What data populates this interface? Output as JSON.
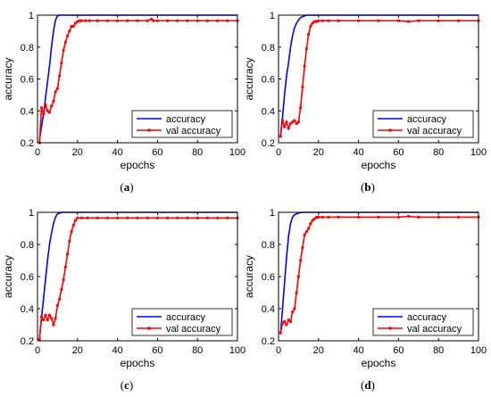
{
  "chart_data": [
    {
      "type": "line",
      "panel": "(a)",
      "caption_letter": "a",
      "xlabel": "epochs",
      "ylabel": "accuracy",
      "xlim": [
        0,
        100
      ],
      "ylim": [
        0.2,
        1
      ],
      "xticks": [
        "0",
        "20",
        "40",
        "60",
        "80",
        "100"
      ],
      "yticks": [
        "0.2",
        "0.4",
        "0.6",
        "0.8",
        "1"
      ],
      "legend": "bottom-right",
      "grid": false,
      "series": [
        {
          "name": "accuracy",
          "color": "#0000ff",
          "marker": "none",
          "x": [
            1,
            2,
            3,
            4,
            5,
            6,
            7,
            8,
            9,
            10,
            11,
            12,
            15,
            20,
            100
          ],
          "y": [
            0.22,
            0.3,
            0.38,
            0.48,
            0.58,
            0.68,
            0.8,
            0.9,
            0.97,
            0.995,
            1.0,
            1.0,
            1.0,
            1.0,
            1.0
          ]
        },
        {
          "name": "val accuracy",
          "color": "#ff0000",
          "marker": "dot",
          "x": [
            1,
            2,
            3,
            4,
            5,
            6,
            7,
            8,
            9,
            10,
            11,
            12,
            13,
            14,
            15,
            16,
            17,
            18,
            19,
            20,
            21,
            22,
            24,
            26,
            30,
            35,
            40,
            45,
            50,
            55,
            57,
            58,
            60,
            65,
            70,
            75,
            80,
            85,
            90,
            95,
            100
          ],
          "y": [
            0.2,
            0.42,
            0.38,
            0.44,
            0.4,
            0.39,
            0.43,
            0.46,
            0.52,
            0.54,
            0.62,
            0.7,
            0.78,
            0.83,
            0.87,
            0.9,
            0.93,
            0.93,
            0.95,
            0.96,
            0.965,
            0.965,
            0.965,
            0.965,
            0.965,
            0.965,
            0.965,
            0.965,
            0.965,
            0.965,
            0.975,
            0.965,
            0.965,
            0.965,
            0.965,
            0.965,
            0.965,
            0.965,
            0.965,
            0.965,
            0.965
          ]
        }
      ]
    },
    {
      "type": "line",
      "panel": "(b)",
      "caption_letter": "b",
      "xlabel": "epochs",
      "ylabel": "accuracy",
      "xlim": [
        0,
        100
      ],
      "ylim": [
        0.2,
        1
      ],
      "xticks": [
        "0",
        "20",
        "40",
        "60",
        "80",
        "100"
      ],
      "yticks": [
        "0.2",
        "0.4",
        "0.6",
        "0.8",
        "1"
      ],
      "legend": "bottom-right",
      "grid": false,
      "series": [
        {
          "name": "accuracy",
          "color": "#0000ff",
          "marker": "none",
          "x": [
            1,
            2,
            3,
            4,
            5,
            6,
            7,
            8,
            9,
            10,
            11,
            12,
            13,
            14,
            16,
            20,
            100
          ],
          "y": [
            0.25,
            0.36,
            0.5,
            0.62,
            0.7,
            0.8,
            0.87,
            0.92,
            0.95,
            0.97,
            0.985,
            0.99,
            0.995,
            1.0,
            1.0,
            1.0,
            1.0
          ]
        },
        {
          "name": "val accuracy",
          "color": "#ff0000",
          "marker": "dot",
          "x": [
            1,
            2,
            3,
            4,
            5,
            6,
            7,
            8,
            9,
            10,
            11,
            12,
            13,
            14,
            15,
            16,
            17,
            18,
            19,
            20,
            22,
            25,
            30,
            40,
            50,
            60,
            65,
            70,
            80,
            90,
            100
          ],
          "y": [
            0.24,
            0.34,
            0.3,
            0.33,
            0.29,
            0.32,
            0.33,
            0.34,
            0.32,
            0.33,
            0.42,
            0.55,
            0.68,
            0.79,
            0.88,
            0.93,
            0.95,
            0.96,
            0.96,
            0.965,
            0.965,
            0.965,
            0.965,
            0.965,
            0.965,
            0.965,
            0.96,
            0.965,
            0.965,
            0.965,
            0.965
          ]
        }
      ]
    },
    {
      "type": "line",
      "panel": "(c)",
      "caption_letter": "c",
      "xlabel": "epochs",
      "ylabel": "accuracy",
      "xlim": [
        0,
        100
      ],
      "ylim": [
        0.2,
        1
      ],
      "xticks": [
        "0",
        "20",
        "40",
        "60",
        "80",
        "100"
      ],
      "yticks": [
        "0.2",
        "0.4",
        "0.6",
        "0.8",
        "1"
      ],
      "legend": "bottom-right",
      "grid": false,
      "series": [
        {
          "name": "accuracy",
          "color": "#0000ff",
          "marker": "none",
          "x": [
            1,
            2,
            3,
            4,
            5,
            6,
            7,
            8,
            9,
            10,
            12,
            15,
            20,
            100
          ],
          "y": [
            0.22,
            0.34,
            0.46,
            0.58,
            0.7,
            0.8,
            0.87,
            0.93,
            0.97,
            0.99,
            1.0,
            1.0,
            1.0,
            1.0
          ]
        },
        {
          "name": "val accuracy",
          "color": "#ff0000",
          "marker": "dot",
          "x": [
            1,
            2,
            3,
            4,
            5,
            6,
            7,
            8,
            9,
            10,
            11,
            12,
            13,
            14,
            15,
            16,
            17,
            18,
            19,
            20,
            22,
            25,
            30,
            35,
            40,
            45,
            50,
            55,
            60,
            65,
            70,
            75,
            80,
            85,
            90,
            95,
            100
          ],
          "y": [
            0.21,
            0.35,
            0.33,
            0.36,
            0.33,
            0.36,
            0.34,
            0.3,
            0.34,
            0.42,
            0.46,
            0.52,
            0.58,
            0.66,
            0.74,
            0.82,
            0.88,
            0.92,
            0.95,
            0.965,
            0.965,
            0.965,
            0.965,
            0.965,
            0.965,
            0.965,
            0.965,
            0.965,
            0.965,
            0.965,
            0.965,
            0.965,
            0.965,
            0.965,
            0.965,
            0.965,
            0.965
          ]
        }
      ]
    },
    {
      "type": "line",
      "panel": "(d)",
      "caption_letter": "d",
      "xlabel": "epochs",
      "ylabel": "accuracy",
      "xlim": [
        0,
        100
      ],
      "ylim": [
        0.2,
        1
      ],
      "xticks": [
        "0",
        "20",
        "40",
        "60",
        "80",
        "100"
      ],
      "yticks": [
        "0.2",
        "0.4",
        "0.6",
        "0.8",
        "1"
      ],
      "legend": "bottom-right",
      "grid": false,
      "series": [
        {
          "name": "accuracy",
          "color": "#0000ff",
          "marker": "none",
          "x": [
            1,
            2,
            3,
            4,
            5,
            6,
            7,
            8,
            9,
            10,
            12,
            15,
            20,
            100
          ],
          "y": [
            0.24,
            0.4,
            0.56,
            0.72,
            0.85,
            0.93,
            0.97,
            0.985,
            0.99,
            0.995,
            1.0,
            1.0,
            1.0,
            1.0
          ]
        },
        {
          "name": "val accuracy",
          "color": "#ff0000",
          "marker": "dot",
          "x": [
            1,
            2,
            3,
            4,
            5,
            6,
            7,
            8,
            9,
            10,
            11,
            12,
            13,
            14,
            15,
            16,
            17,
            18,
            19,
            20,
            22,
            25,
            30,
            40,
            50,
            60,
            65,
            70,
            80,
            90,
            100
          ],
          "y": [
            0.25,
            0.31,
            0.32,
            0.3,
            0.33,
            0.32,
            0.38,
            0.4,
            0.5,
            0.6,
            0.7,
            0.78,
            0.86,
            0.88,
            0.9,
            0.93,
            0.95,
            0.96,
            0.97,
            0.97,
            0.97,
            0.97,
            0.97,
            0.97,
            0.97,
            0.97,
            0.975,
            0.97,
            0.97,
            0.97,
            0.97
          ]
        }
      ]
    }
  ]
}
